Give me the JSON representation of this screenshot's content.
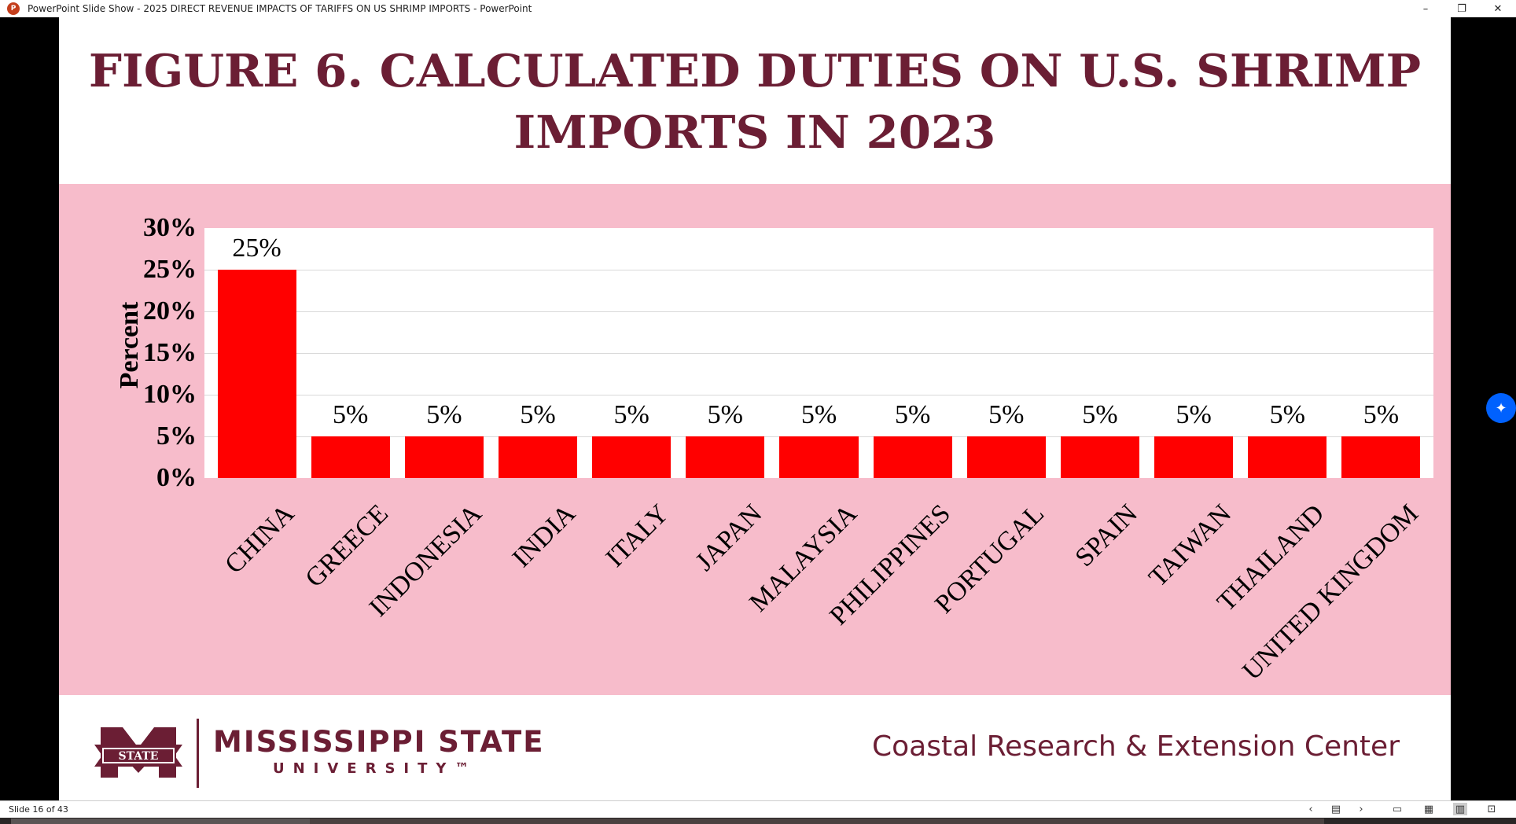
{
  "window": {
    "title": "PowerPoint Slide Show  -  2025 DIRECT REVENUE IMPACTS OF TARIFFS ON US SHRIMP IMPORTS - PowerPoint",
    "minimize": "–",
    "restore": "❐",
    "close": "✕"
  },
  "slide": {
    "title_line1": "FIGURE 6. CALCULATED DUTIES ON U.S. SHRIMP",
    "title_line2": "IMPORTS IN 2023",
    "footer": {
      "university": "MISSISSIPPI STATE",
      "university_sub": "UNIVERSITY™",
      "logo_text": "STATE",
      "center": "Coastal Research & Extension Center"
    }
  },
  "chart_data": {
    "type": "bar",
    "title": "FIGURE 6. CALCULATED DUTIES ON U.S. SHRIMP IMPORTS IN 2023",
    "xlabel": "",
    "ylabel": "Percent",
    "ylim": [
      0,
      30
    ],
    "yticks": [
      "0%",
      "5%",
      "10%",
      "15%",
      "20%",
      "25%",
      "30%"
    ],
    "categories": [
      "CHINA",
      "GREECE",
      "INDONESIA",
      "INDIA",
      "ITALY",
      "JAPAN",
      "MALAYSIA",
      "PHILIPPINES",
      "PORTUGAL",
      "SPAIN",
      "TAIWAN",
      "THAILAND",
      "UNITED KINGDOM"
    ],
    "values": [
      25,
      5,
      5,
      5,
      5,
      5,
      5,
      5,
      5,
      5,
      5,
      5,
      5
    ],
    "data_labels": [
      "25%",
      "5%",
      "5%",
      "5%",
      "5%",
      "5%",
      "5%",
      "5%",
      "5%",
      "5%",
      "5%",
      "5%",
      "5%"
    ],
    "bar_color": "#ff0000",
    "grid": true
  },
  "statusbar": {
    "slide_counter": "Slide 16 of 43"
  },
  "colors": {
    "maroon": "#6b1e34",
    "chart_bg": "#f7bccb",
    "bar": "#ff0000"
  }
}
